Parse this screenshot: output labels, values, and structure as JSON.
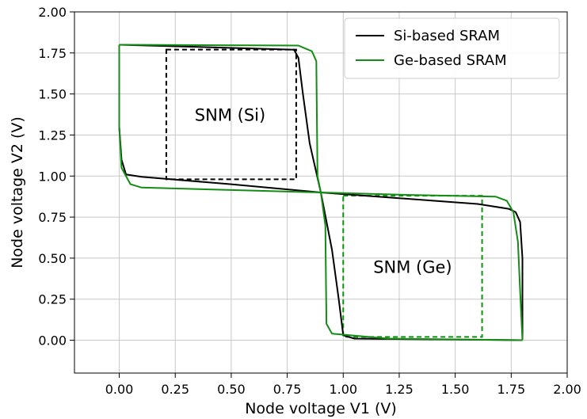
{
  "chart_data": {
    "type": "line",
    "xlabel": "Node voltage V1 (V)",
    "ylabel": "Node voltage V2 (V)",
    "xlim": [
      -0.2,
      2.0
    ],
    "ylim": [
      -0.2,
      2.0
    ],
    "xticks": [
      "0.00",
      "0.25",
      "0.50",
      "0.75",
      "1.00",
      "1.25",
      "1.50",
      "1.75",
      "2.00"
    ],
    "yticks": [
      "0.00",
      "0.25",
      "0.50",
      "0.75",
      "1.00",
      "1.25",
      "1.50",
      "1.75",
      "2.00"
    ],
    "grid": true,
    "legend_position": "top-right",
    "series": [
      {
        "name": "Si-based SRAM",
        "color": "#000000",
        "curves": [
          [
            [
              0.0,
              1.8
            ],
            [
              0.78,
              1.77
            ],
            [
              0.8,
              1.72
            ],
            [
              0.82,
              1.5
            ],
            [
              0.85,
              1.2
            ],
            [
              0.9,
              0.9
            ],
            [
              0.95,
              0.55
            ],
            [
              0.98,
              0.25
            ],
            [
              1.0,
              0.03
            ],
            [
              1.05,
              0.01
            ],
            [
              1.8,
              0.0
            ]
          ],
          [
            [
              0.0,
              1.8
            ],
            [
              0.0,
              1.3
            ],
            [
              0.01,
              1.1
            ],
            [
              0.03,
              1.01
            ],
            [
              0.1,
              0.995
            ],
            [
              0.5,
              0.95
            ],
            [
              0.9,
              0.9
            ],
            [
              1.3,
              0.86
            ],
            [
              1.6,
              0.83
            ],
            [
              1.74,
              0.8
            ],
            [
              1.77,
              0.78
            ],
            [
              1.79,
              0.72
            ],
            [
              1.8,
              0.5
            ],
            [
              1.8,
              0.0
            ]
          ]
        ]
      },
      {
        "name": "Ge-based SRAM",
        "color": "#138d13",
        "curves": [
          [
            [
              0.0,
              1.8
            ],
            [
              0.8,
              1.795
            ],
            [
              0.86,
              1.76
            ],
            [
              0.88,
              1.7
            ],
            [
              0.885,
              1.0
            ],
            [
              0.9,
              0.9
            ],
            [
              0.92,
              0.7
            ],
            [
              0.925,
              0.1
            ],
            [
              0.95,
              0.04
            ],
            [
              1.2,
              0.01
            ],
            [
              1.8,
              0.0
            ]
          ],
          [
            [
              0.0,
              1.8
            ],
            [
              0.0,
              1.3
            ],
            [
              0.01,
              1.05
            ],
            [
              0.05,
              0.95
            ],
            [
              0.1,
              0.93
            ],
            [
              0.5,
              0.915
            ],
            [
              0.9,
              0.9
            ],
            [
              1.3,
              0.885
            ],
            [
              1.68,
              0.875
            ],
            [
              1.73,
              0.85
            ],
            [
              1.76,
              0.78
            ],
            [
              1.78,
              0.6
            ],
            [
              1.79,
              0.3
            ],
            [
              1.8,
              0.0
            ]
          ]
        ]
      }
    ],
    "snm_boxes": [
      {
        "label": "SNM (Si)",
        "color": "#000000",
        "x": [
          0.21,
          0.79
        ],
        "y": [
          0.98,
          1.77
        ],
        "label_at": [
          0.495,
          1.375
        ]
      },
      {
        "label": "SNM (Ge)",
        "color": "#138d13",
        "x": [
          1.0,
          1.62
        ],
        "y": [
          0.02,
          0.88
        ],
        "label_at": [
          1.31,
          0.45
        ]
      }
    ]
  }
}
